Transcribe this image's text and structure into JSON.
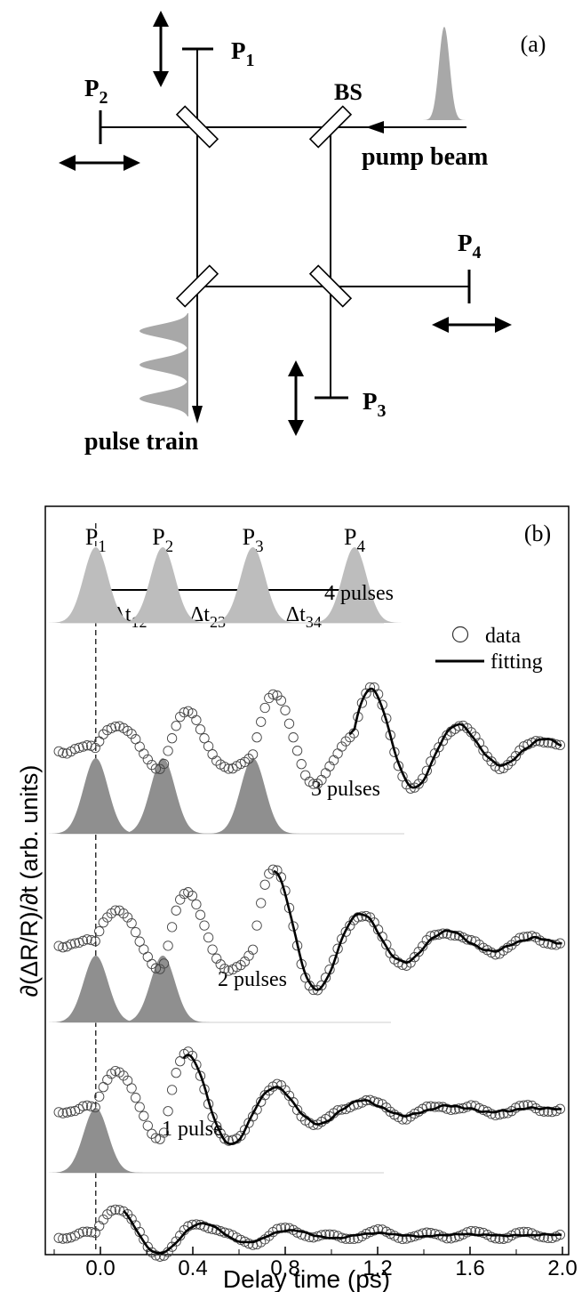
{
  "panel_a": {
    "label": "(a)",
    "beam_splitter_label": "BS",
    "pump_label": "pump beam",
    "train_label": "pulse train",
    "mirrors": [
      {
        "name": "P",
        "sub": "1"
      },
      {
        "name": "P",
        "sub": "2"
      },
      {
        "name": "P",
        "sub": "3"
      },
      {
        "name": "P",
        "sub": "4"
      }
    ]
  },
  "chart_data": {
    "type": "scatter",
    "label": "(b)",
    "xlabel": "Delay time (ps)",
    "ylabel": "∂(ΔR/R)/∂t (arb. units)",
    "xlim": [
      -0.2,
      2.0
    ],
    "xticks": [
      "0.0",
      "0.4",
      "0.8",
      "1.2",
      "1.6",
      "2.0"
    ],
    "legend": {
      "position": "top-right",
      "entries": [
        "data",
        "fitting"
      ]
    },
    "reference_line_x": -0.02,
    "pulse_positions": [
      -0.02,
      0.27,
      0.66,
      1.1
    ],
    "pulse_labels": [
      {
        "name": "P",
        "sub": "1"
      },
      {
        "name": "P",
        "sub": "2"
      },
      {
        "name": "P",
        "sub": "3"
      },
      {
        "name": "P",
        "sub": "4"
      }
    ],
    "interval_labels": [
      {
        "name": "Δt",
        "sub": "12"
      },
      {
        "name": "Δt",
        "sub": "23"
      },
      {
        "name": "Δt",
        "sub": "34"
      }
    ],
    "panels": [
      {
        "label": "4 pulses",
        "pulses": 4,
        "fit_start": 1.08
      },
      {
        "label": "3 pulses",
        "pulses": 3,
        "fit_start": 0.75
      },
      {
        "label": "2 pulses",
        "pulses": 2,
        "fit_start": 0.36
      },
      {
        "label": "1 pulse",
        "pulses": 1,
        "fit_start": 0.1
      }
    ],
    "oscillation": {
      "frequency_THz": 2.65,
      "decay_ps": 0.42
    }
  },
  "colors": {
    "pulse_light": "#bdbdbd",
    "pulse_dark": "#8f8f8f",
    "line": "#000000"
  }
}
